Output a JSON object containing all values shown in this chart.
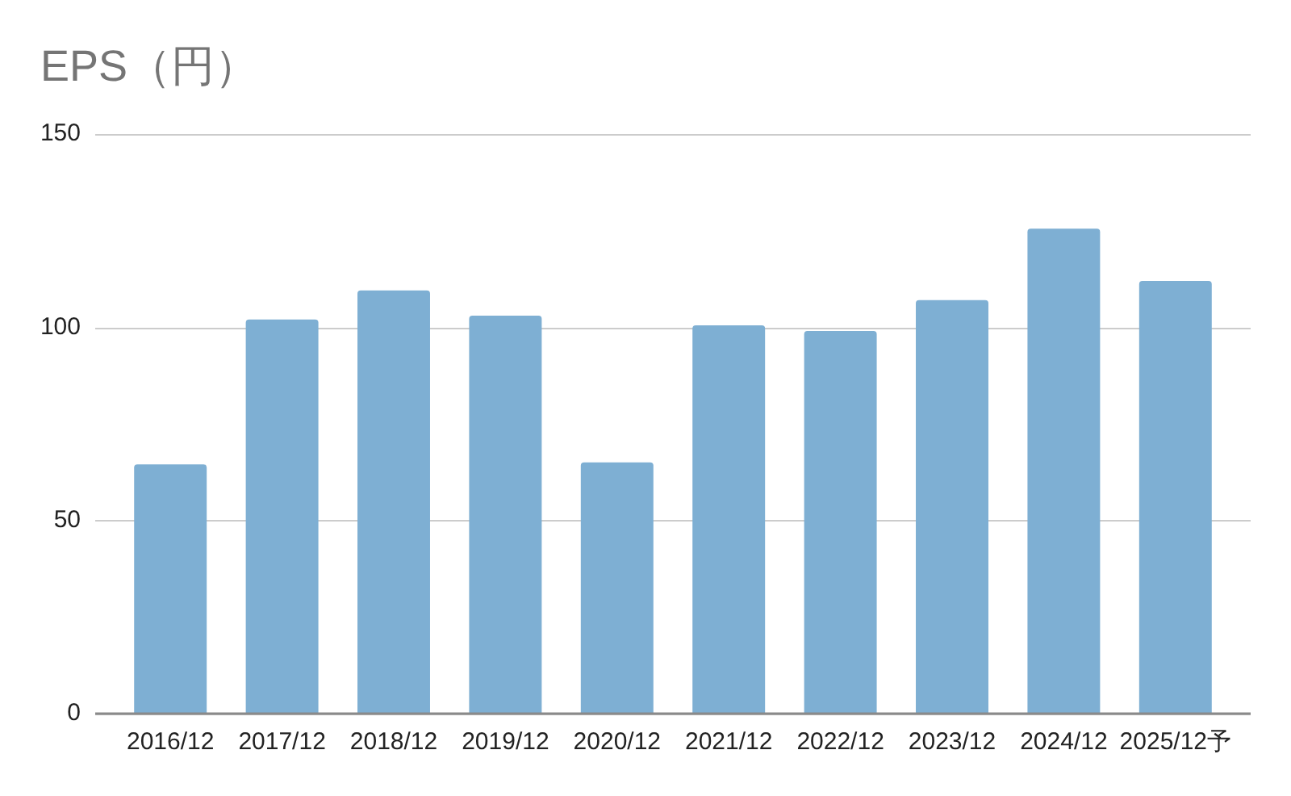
{
  "chart_data": {
    "type": "bar",
    "title": "EPS（円）",
    "categories": [
      "2016/12",
      "2017/12",
      "2018/12",
      "2019/12",
      "2020/12",
      "2021/12",
      "2022/12",
      "2023/12",
      "2024/12",
      "2025/12予"
    ],
    "values": [
      64.5,
      102,
      109.5,
      103,
      65,
      100.5,
      99,
      107,
      125.5,
      112
    ],
    "color": "#7eafd3",
    "ylim": [
      0,
      150
    ],
    "yticks": [
      0,
      50,
      100,
      150
    ],
    "grid": "y"
  }
}
